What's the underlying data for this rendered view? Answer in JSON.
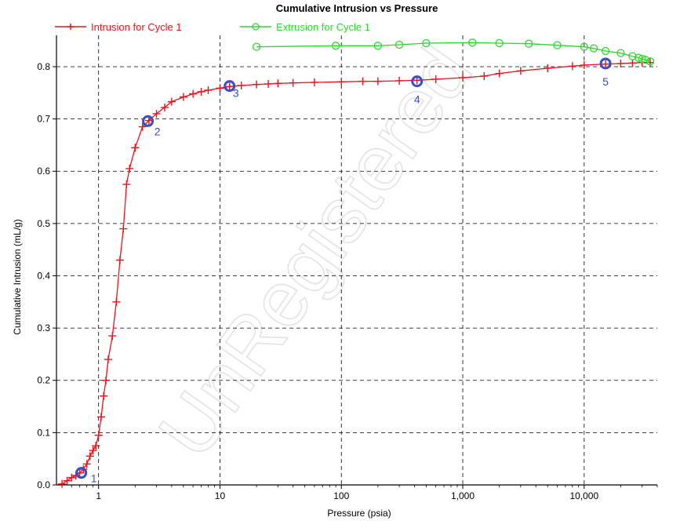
{
  "chart_data": {
    "type": "line",
    "title": "Cumulative Intrusion vs Pressure",
    "xlabel": "Pressure (psia)",
    "ylabel": "Cumulative Intrusion (mL/g)",
    "xscale": "log",
    "xlim": [
      0.45,
      40000
    ],
    "ylim": [
      0,
      0.86
    ],
    "xticks": [
      {
        "value": 1,
        "label": "1"
      },
      {
        "value": 10,
        "label": "10"
      },
      {
        "value": 100,
        "label": "100"
      },
      {
        "value": 1000,
        "label": "1,000"
      },
      {
        "value": 10000,
        "label": "10,000"
      }
    ],
    "yticks": [
      {
        "value": 0,
        "label": "0.0"
      },
      {
        "value": 0.1,
        "label": "0.1"
      },
      {
        "value": 0.2,
        "label": "0.2"
      },
      {
        "value": 0.3,
        "label": "0.3"
      },
      {
        "value": 0.4,
        "label": "0.4"
      },
      {
        "value": 0.5,
        "label": "0.5"
      },
      {
        "value": 0.6,
        "label": "0.6"
      },
      {
        "value": 0.7,
        "label": "0.7"
      },
      {
        "value": 0.8,
        "label": "0.8"
      }
    ],
    "grid": true,
    "legend_position": "top",
    "series": [
      {
        "name": "Intrusion for Cycle 1",
        "color": "#e8141b",
        "marker": "plus",
        "x": [
          0.5,
          0.55,
          0.6,
          0.65,
          0.7,
          0.75,
          0.8,
          0.85,
          0.9,
          0.95,
          1.0,
          1.05,
          1.1,
          1.15,
          1.2,
          1.3,
          1.4,
          1.5,
          1.6,
          1.7,
          1.8,
          2.0,
          2.3,
          2.6,
          3.0,
          3.5,
          4.0,
          5.0,
          6.0,
          7.0,
          8.0,
          10,
          12,
          15,
          20,
          25,
          30,
          40,
          60,
          100,
          150,
          200,
          300,
          420,
          600,
          1000,
          1500,
          2000,
          3000,
          5000,
          8000,
          10000,
          15000,
          20000,
          25000,
          30000,
          35000
        ],
        "y": [
          0.002,
          0.008,
          0.014,
          0.018,
          0.023,
          0.03,
          0.04,
          0.055,
          0.066,
          0.075,
          0.095,
          0.13,
          0.17,
          0.2,
          0.24,
          0.285,
          0.35,
          0.43,
          0.49,
          0.575,
          0.605,
          0.645,
          0.685,
          0.697,
          0.71,
          0.722,
          0.733,
          0.742,
          0.748,
          0.752,
          0.755,
          0.759,
          0.762,
          0.764,
          0.766,
          0.767,
          0.768,
          0.769,
          0.77,
          0.771,
          0.772,
          0.772,
          0.773,
          0.774,
          0.776,
          0.779,
          0.782,
          0.787,
          0.792,
          0.797,
          0.801,
          0.803,
          0.805,
          0.806,
          0.807,
          0.808,
          0.808
        ]
      },
      {
        "name": "Extrusion for Cycle 1",
        "color": "#2fd62f",
        "marker": "circle",
        "x": [
          20,
          90,
          200,
          300,
          500,
          1200,
          2000,
          3500,
          6000,
          10000,
          12000,
          15000,
          20000,
          25000,
          28000,
          30000,
          32000,
          35000
        ],
        "y": [
          0.838,
          0.84,
          0.84,
          0.842,
          0.845,
          0.846,
          0.845,
          0.844,
          0.841,
          0.838,
          0.835,
          0.83,
          0.826,
          0.82,
          0.817,
          0.815,
          0.813,
          0.81
        ]
      }
    ],
    "annotations": [
      {
        "label": "1",
        "x": 0.72,
        "y": 0.023
      },
      {
        "label": "2",
        "x": 2.55,
        "y": 0.696
      },
      {
        "label": "3",
        "x": 12,
        "y": 0.763
      },
      {
        "label": "4",
        "x": 420,
        "y": 0.772
      },
      {
        "label": "5",
        "x": 15000,
        "y": 0.806
      }
    ],
    "watermark": "UnRegistered",
    "colors": {
      "annotation": "#3a4fc4",
      "grid": "#000000",
      "watermark": "#e2e2e2"
    }
  }
}
